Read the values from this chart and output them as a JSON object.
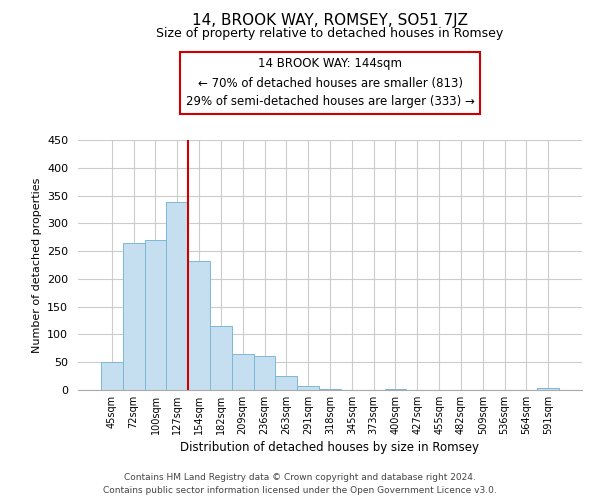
{
  "title": "14, BROOK WAY, ROMSEY, SO51 7JZ",
  "subtitle": "Size of property relative to detached houses in Romsey",
  "xlabel": "Distribution of detached houses by size in Romsey",
  "ylabel": "Number of detached properties",
  "bar_labels": [
    "45sqm",
    "72sqm",
    "100sqm",
    "127sqm",
    "154sqm",
    "182sqm",
    "209sqm",
    "236sqm",
    "263sqm",
    "291sqm",
    "318sqm",
    "345sqm",
    "373sqm",
    "400sqm",
    "427sqm",
    "455sqm",
    "482sqm",
    "509sqm",
    "536sqm",
    "564sqm",
    "591sqm"
  ],
  "bar_values": [
    50,
    265,
    270,
    338,
    232,
    115,
    65,
    62,
    25,
    7,
    2,
    0,
    0,
    1,
    0,
    0,
    0,
    0,
    0,
    0,
    3
  ],
  "bar_color": "#C5DFF0",
  "bar_edge_color": "#7BB8D4",
  "highlight_line_color": "#CC0000",
  "annotation_line1": "14 BROOK WAY: 144sqm",
  "annotation_line2": "← 70% of detached houses are smaller (813)",
  "annotation_line3": "29% of semi-detached houses are larger (333) →",
  "ylim": [
    0,
    450
  ],
  "yticks": [
    0,
    50,
    100,
    150,
    200,
    250,
    300,
    350,
    400,
    450
  ],
  "footer_line1": "Contains HM Land Registry data © Crown copyright and database right 2024.",
  "footer_line2": "Contains public sector information licensed under the Open Government Licence v3.0.",
  "bg_color": "#FFFFFF",
  "grid_color": "#CCCCCC"
}
